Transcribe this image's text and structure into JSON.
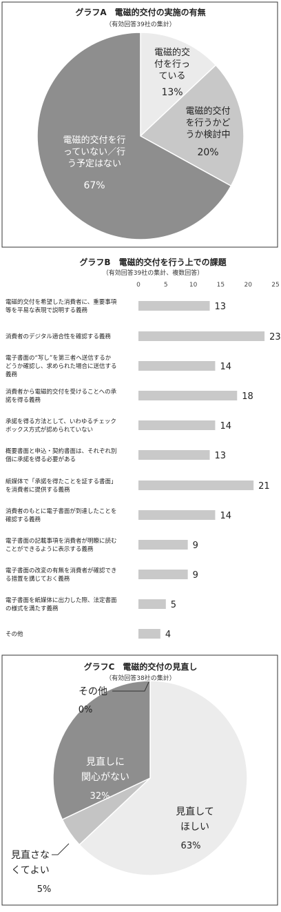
{
  "chart_data": [
    {
      "type": "pie",
      "title": "グラフA　電磁的交付の実施の有無",
      "subtitle": "（有効回答39社の集計）",
      "slices": [
        {
          "label_lines": [
            "電磁的交",
            "付を行っ",
            "ている"
          ],
          "value": 13,
          "value_label": "13%",
          "color": "#ebebeb"
        },
        {
          "label_lines": [
            "電磁的交付",
            "を行うかど",
            "うか検討中"
          ],
          "value": 20,
          "value_label": "20%",
          "color": "#c8c8c8"
        },
        {
          "label_lines": [
            "電磁的交付を行",
            "っていない／行",
            "う予定はない"
          ],
          "value": 67,
          "value_label": "67%",
          "color": "#8e8e8e"
        }
      ]
    },
    {
      "type": "bar",
      "orientation": "horizontal",
      "title": "グラフB　電磁的交付を行う上での課題",
      "subtitle": "（有効回答39社の集計、複数回答）",
      "xlim": [
        0,
        25
      ],
      "ticks": [
        "0",
        "5",
        "10",
        "15",
        "20",
        "25"
      ],
      "bar_color": "#c9c9c9",
      "categories": [
        [
          "電磁的交付を希望した消費者に、重要事項",
          "等を平易な表現で説明する義務"
        ],
        [
          "消費者のデジタル適合性を確認する義務"
        ],
        [
          "電子書面の“写し”を第三者へ送信するか",
          "どうか確認し、求められた場合に送信する",
          "義務"
        ],
        [
          "消費者から電磁的交付を受けることへの承",
          "諾を得る義務"
        ],
        [
          "承諾を得る方法として、いわゆるチェック",
          "ボックス方式が認められていない"
        ],
        [
          "概要書面と申込・契約書面は、それぞれ別",
          "個に承諾を得る必要がある"
        ],
        [
          "紙媒体で「承諾を得たことを証する書面」",
          "を消費者に提供する義務"
        ],
        [
          "消費者のもとに電子書面が到達したことを",
          "確認する義務"
        ],
        [
          "電子書面の記載事項を消費者が明瞭に読む",
          "ことができるように表示する義務"
        ],
        [
          "電子書面の改変の有無を消費者が確認でき",
          "る措置を講じておく義務"
        ],
        [
          "電子書面を紙媒体に出力した際、法定書面",
          "の様式を満たす義務"
        ],
        [
          "その他"
        ]
      ],
      "values": [
        13,
        23,
        14,
        18,
        14,
        13,
        21,
        14,
        9,
        9,
        5,
        4
      ],
      "value_labels": [
        "13",
        "23",
        "14",
        "18",
        "14",
        "13",
        "21",
        "14",
        "9",
        "9",
        "5",
        "4"
      ]
    },
    {
      "type": "pie",
      "title": "グラフC　電磁的交付の見直し",
      "subtitle": "（有効回答38社の集計）",
      "slices": [
        {
          "label_lines": [
            "その他"
          ],
          "value": 0,
          "value_label": "0%",
          "color": "#555555"
        },
        {
          "label_lines": [
            "見直して",
            "ほしい"
          ],
          "value": 63,
          "value_label": "63%",
          "color": "#ececec"
        },
        {
          "label_lines": [
            "見直さな",
            "くてよい"
          ],
          "value": 5,
          "value_label": "5%",
          "color": "#c4c4c4"
        },
        {
          "label_lines": [
            "見直しに",
            "関心がない"
          ],
          "value": 32,
          "value_label": "32%",
          "color": "#8e8e8e"
        }
      ]
    }
  ]
}
